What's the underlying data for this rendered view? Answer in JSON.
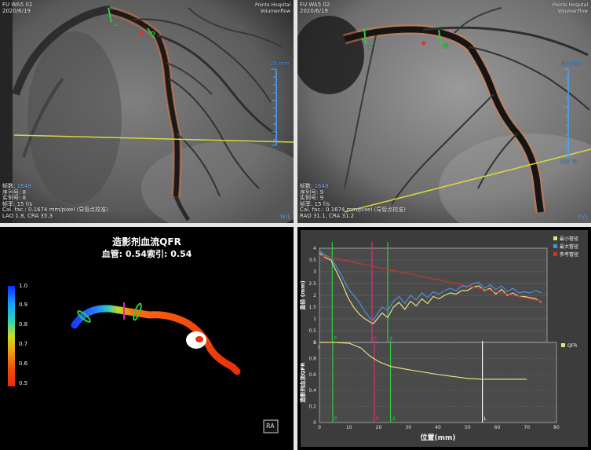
{
  "angio_left": {
    "top_left": [
      "FU WA5 02",
      "2020/6/19"
    ],
    "top_right": [
      "Pointe Hospital",
      "Volumenflow"
    ],
    "scale_top": "25 mm",
    "meta": [
      {
        "label": "帧数:",
        "value": "1648"
      },
      {
        "label": "序列号:",
        "value": "8"
      },
      {
        "label": "实例号:",
        "value": "8"
      },
      {
        "label": "帧率:",
        "value": "15 f/s"
      }
    ],
    "cal": "Cal. fac.: 0.1674 mm/pixel (导管点校准)",
    "proj": "LAO 1.8, CRA 35.3",
    "wl": "W/L",
    "markers": [
      "P",
      "D"
    ]
  },
  "angio_right": {
    "top_left": [
      "FU WA5 02",
      "2020/6/19"
    ],
    "top_right": [
      "Pointe Hospital",
      "Volumenflow"
    ],
    "scale_top": "20 mm",
    "scale_bottom": "107 %",
    "meta": [
      {
        "label": "帧数:",
        "value": "1648"
      },
      {
        "label": "序列号:",
        "value": "9"
      },
      {
        "label": "实例号:",
        "value": "9"
      },
      {
        "label": "帧率:",
        "value": "15 f/s"
      }
    ],
    "cal": "Cal. fac.: 0.1674 mm/pixel (导管点校准)",
    "proj": "RAO 31.1, CRA 31.2",
    "wl": "W/L",
    "markers": [
      "P",
      "D"
    ]
  },
  "qfr_panel": {
    "title": "造影剂血流QFR",
    "vessel_label": "血管:",
    "vessel_value": "0.54",
    "index_label": "索引:",
    "index_value": "0.54",
    "colorbar_ticks": [
      "1.0",
      "0.9",
      "0.8",
      "0.7",
      "0.6",
      "0.5"
    ],
    "ra_label": "RA"
  },
  "chart_data": [
    {
      "type": "line",
      "ylabel": "直径 (mm)",
      "xlim": [
        0,
        80
      ],
      "ylim": [
        0,
        4
      ],
      "xticks": [
        0,
        10,
        20,
        30,
        40,
        50,
        60,
        70,
        80
      ],
      "yticks": [
        0,
        0.5,
        1,
        1.5,
        2,
        2.5,
        3,
        3.5,
        4
      ],
      "markers": [
        {
          "label": "P",
          "x": 4.5,
          "color": "#2ecc40"
        },
        {
          "label": "R",
          "x": 18.5,
          "color": "#d63384"
        },
        {
          "label": "d",
          "x": 24,
          "color": "#2ecc40"
        }
      ],
      "legend": [
        "最小管径",
        "最大管径",
        "参考管径"
      ],
      "series": [
        {
          "name": "最小管径",
          "color": "#e8e07a",
          "x": [
            0,
            2,
            4,
            6,
            8,
            10,
            12,
            14,
            16,
            18,
            19,
            20,
            22,
            24,
            26,
            28,
            30,
            32,
            34,
            36,
            38,
            40,
            42,
            44,
            46,
            48,
            50,
            52,
            54,
            56,
            58,
            60,
            62,
            64,
            66,
            68,
            70,
            72,
            74,
            76,
            78
          ],
          "y": [
            3.8,
            3.6,
            3.5,
            3.0,
            2.5,
            1.9,
            1.5,
            1.2,
            1.0,
            0.85,
            0.8,
            0.95,
            1.25,
            1.05,
            1.5,
            1.7,
            1.4,
            1.75,
            1.55,
            1.85,
            1.65,
            1.95,
            1.85,
            2.0,
            2.1,
            2.05,
            2.2,
            2.2,
            2.35,
            2.4,
            2.2,
            2.3,
            2.05,
            2.25,
            2.0,
            2.1,
            1.95,
            1.95,
            1.9,
            1.85,
            1.7
          ]
        },
        {
          "name": "最大管径",
          "color": "#4a90e2",
          "x": [
            0,
            2,
            4,
            6,
            8,
            10,
            12,
            14,
            16,
            18,
            19,
            20,
            22,
            24,
            26,
            28,
            30,
            32,
            34,
            36,
            38,
            40,
            42,
            44,
            46,
            48,
            50,
            52,
            54,
            56,
            58,
            60,
            62,
            64,
            66,
            68,
            70,
            72,
            74,
            76,
            78
          ],
          "y": [
            3.9,
            3.7,
            3.6,
            3.2,
            2.8,
            2.3,
            2.0,
            1.7,
            1.3,
            1.0,
            0.95,
            1.15,
            1.5,
            1.35,
            1.75,
            1.95,
            1.65,
            2.0,
            1.8,
            2.1,
            1.9,
            2.15,
            2.05,
            2.2,
            2.3,
            2.2,
            2.4,
            2.35,
            2.5,
            2.55,
            2.3,
            2.45,
            2.25,
            2.4,
            2.15,
            2.3,
            2.1,
            2.15,
            2.1,
            2.2,
            2.1
          ]
        },
        {
          "name": "参考管径",
          "color": "#c0392b",
          "x": [
            0,
            78
          ],
          "y": [
            3.7,
            1.75
          ]
        }
      ]
    },
    {
      "type": "line",
      "xlabel": "位置(mm)",
      "ylabel": "造影剂血流QFR",
      "xlim": [
        0,
        80
      ],
      "ylim": [
        0,
        1
      ],
      "xticks": [
        0,
        10,
        20,
        30,
        40,
        50,
        60,
        70,
        80
      ],
      "yticks": [
        0,
        0.2,
        0.4,
        0.6,
        0.8,
        1
      ],
      "markers": [
        {
          "label": "P",
          "x": 4.5,
          "color": "#2ecc40"
        },
        {
          "label": "R",
          "x": 18.5,
          "color": "#d63384"
        },
        {
          "label": "d",
          "x": 24,
          "color": "#2ecc40"
        },
        {
          "label": "L",
          "x": 55,
          "color": "#ffffff"
        }
      ],
      "legend": [
        "QFR"
      ],
      "series": [
        {
          "name": "QFR",
          "color": "#e8e07a",
          "x": [
            0,
            5,
            10,
            14,
            17,
            20,
            24,
            30,
            40,
            50,
            55,
            60,
            70
          ],
          "y": [
            1.0,
            1.0,
            0.99,
            0.93,
            0.83,
            0.76,
            0.7,
            0.66,
            0.6,
            0.55,
            0.54,
            0.54,
            0.54
          ]
        }
      ]
    }
  ]
}
